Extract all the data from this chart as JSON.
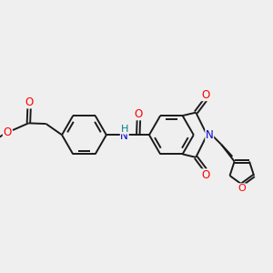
{
  "bg_color": "#efefef",
  "bond_color": "#1a1a1a",
  "bond_width": 1.4,
  "atom_colors": {
    "O": "#ff0000",
    "N": "#0000cd",
    "H": "#008080",
    "C": "#1a1a1a"
  },
  "font_size": 8.5,
  "fig_bg": "#efefef"
}
